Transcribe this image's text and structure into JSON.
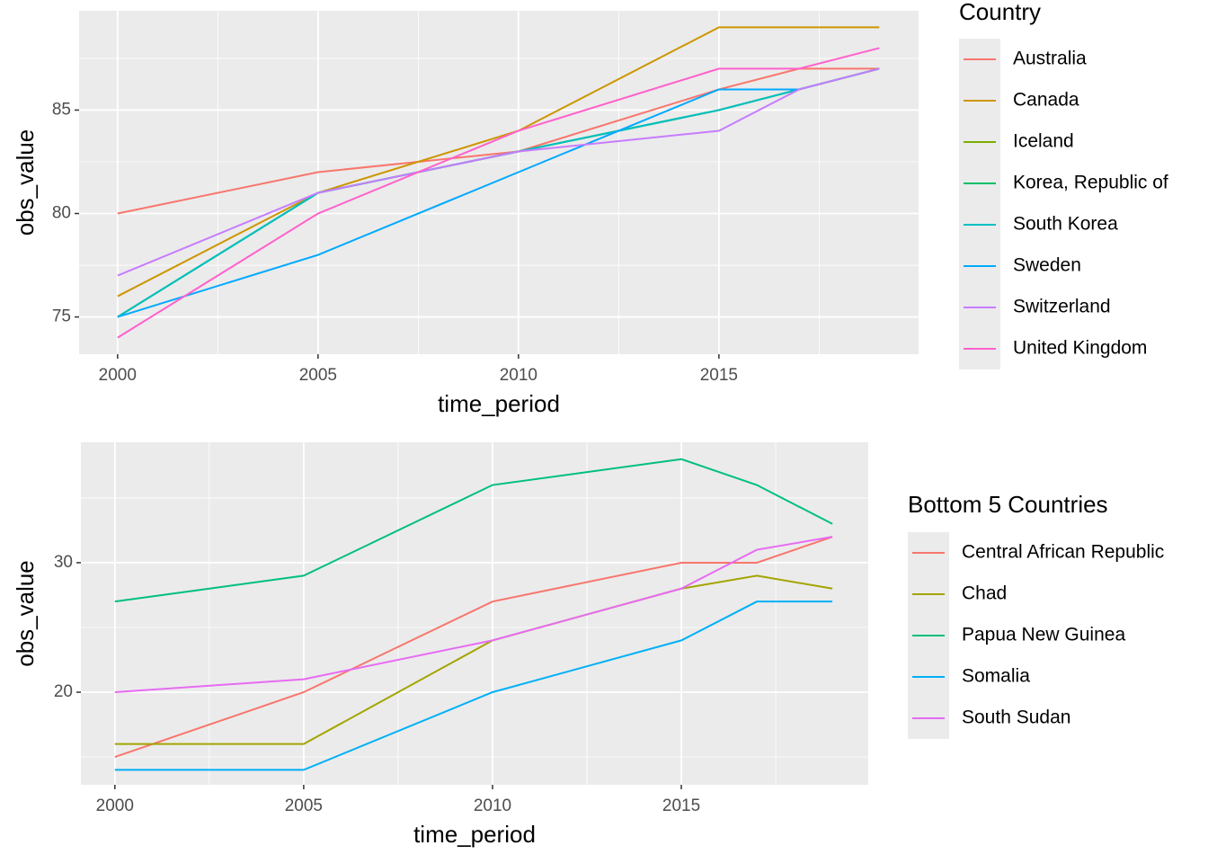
{
  "chart_data": [
    {
      "type": "line",
      "x_label": "time_period",
      "y_label": "obs_value",
      "legend_title": "Country",
      "x": [
        2000,
        2005,
        2010,
        2015,
        2017,
        2019
      ],
      "xlim": [
        1999.04,
        2019.98
      ],
      "xticks": [
        2000,
        2005,
        2010,
        2015
      ],
      "ylim": [
        73.2,
        89.8
      ],
      "yticks": [
        75,
        80,
        85
      ],
      "grid": true,
      "series": [
        {
          "name": "Australia",
          "color": "#F8766D",
          "values": [
            80,
            82,
            83,
            86,
            87,
            87
          ]
        },
        {
          "name": "Canada",
          "color": "#CD9600",
          "values": [
            76,
            81,
            84,
            89,
            89,
            89
          ]
        },
        {
          "name": "Iceland",
          "color": "#7CAE00",
          "values": [
            75,
            81,
            83,
            85,
            86,
            87
          ]
        },
        {
          "name": "Korea, Republic of",
          "color": "#00BE67",
          "values": [
            75,
            81,
            83,
            85,
            86,
            87
          ]
        },
        {
          "name": "South Korea",
          "color": "#00BFC4",
          "values": [
            75,
            81,
            83,
            85,
            86,
            87
          ]
        },
        {
          "name": "Sweden",
          "color": "#00A9FF",
          "values": [
            75,
            78,
            82,
            86,
            86,
            null
          ]
        },
        {
          "name": "Switzerland",
          "color": "#C77CFF",
          "values": [
            77,
            81,
            83,
            84,
            86,
            87
          ]
        },
        {
          "name": "United Kingdom",
          "color": "#FF61CC",
          "values": [
            74,
            80,
            84,
            87,
            87,
            88
          ]
        }
      ]
    },
    {
      "type": "line",
      "x_label": "time_period",
      "y_label": "obs_value",
      "legend_title": "Bottom 5 Countries",
      "x": [
        2000,
        2005,
        2010,
        2015,
        2017,
        2019
      ],
      "xlim": [
        1999.1,
        2019.95
      ],
      "xticks": [
        2000,
        2005,
        2010,
        2015
      ],
      "ylim": [
        12.85,
        39.3
      ],
      "yticks": [
        20,
        30
      ],
      "grid": true,
      "series": [
        {
          "name": "Central African Republic",
          "color": "#F8766D",
          "values": [
            15,
            20,
            27,
            30,
            30,
            32
          ]
        },
        {
          "name": "Chad",
          "color": "#A3A500",
          "values": [
            16,
            16,
            24,
            28,
            29,
            28
          ]
        },
        {
          "name": "Papua New Guinea",
          "color": "#00BF7D",
          "values": [
            27,
            29,
            36,
            38,
            36,
            33
          ]
        },
        {
          "name": "Somalia",
          "color": "#00B0F6",
          "values": [
            14,
            14,
            20,
            24,
            27,
            27
          ]
        },
        {
          "name": "South Sudan",
          "color": "#E76BF3",
          "values": [
            20,
            21,
            24,
            28,
            31,
            32
          ]
        }
      ]
    }
  ]
}
